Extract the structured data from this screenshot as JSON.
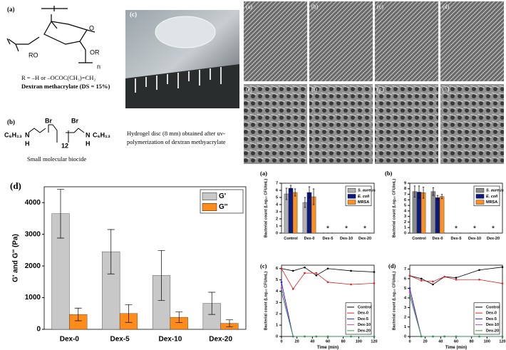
{
  "structure": {
    "label": "(a)",
    "ro": "RO",
    "or": "OR",
    "o": "O",
    "n": "n",
    "r_group": "R = –H or –OCOC(CH₃)=CH₂",
    "name": "Dextran methacrylate (DS = 15%)"
  },
  "biocide": {
    "label": "(b)",
    "c6h13_left": "C₆H₁₃",
    "c6h13_right": "C₆H₁₃",
    "n_left": "N",
    "n_right": "N",
    "h_left": "H",
    "h_right": "H",
    "br_left": "Br",
    "br_right": "Br",
    "repeat": "12",
    "name": "Small molecular biocide"
  },
  "photo": {
    "label": "(c)",
    "caption_1": "Hydrogel disc  (8 mm) obtained after uv-",
    "caption_2": "polymerization of dextran methyacrylate"
  },
  "sem": {
    "labels": [
      "(a)",
      "(b)",
      "(c)",
      "(d)",
      "(e)",
      "(f)",
      "(g)",
      "(h)"
    ]
  },
  "chart_data": [
    {
      "type": "bar",
      "title": "(d)",
      "categories": [
        "Dex-0",
        "Dex-5",
        "Dex-10",
        "Dex-20"
      ],
      "ylabel": "G' and G'' (Pa)",
      "series": [
        {
          "name": "G'",
          "color": "#c8c8c8",
          "values": [
            3650,
            2450,
            1700,
            820
          ],
          "errors": [
            770,
            700,
            790,
            350
          ]
        },
        {
          "name": "G''",
          "color": "#ff8c1a",
          "values": [
            470,
            500,
            380,
            190
          ],
          "errors": [
            200,
            280,
            170,
            110
          ]
        }
      ],
      "ylim": [
        0,
        4500
      ],
      "yticks": [
        0,
        1000,
        2000,
        3000,
        4000
      ],
      "legend": "upper right"
    },
    {
      "type": "bar",
      "title": "(a)",
      "categories": [
        "Control",
        "Dex-0",
        "Dex-5",
        "Dex-10",
        "Dex-20"
      ],
      "ylabel": "Bacterial count (Log₁₀ CFU/mL)",
      "series": [
        {
          "name": "S. aureus",
          "color": "#b0b0b0",
          "values": [
            5.5,
            4.3,
            0,
            0,
            0
          ],
          "errors": [
            0.8,
            0.7,
            0,
            0,
            0
          ]
        },
        {
          "name": "E. coli",
          "color": "#0a1a80",
          "values": [
            6.3,
            5.7,
            0,
            0,
            0
          ],
          "errors": [
            0.4,
            0.8,
            0,
            0,
            0
          ]
        },
        {
          "name": "MRSA",
          "color": "#ff9020",
          "values": [
            5.7,
            5.1,
            0,
            0,
            0
          ],
          "errors": [
            0.5,
            1.1,
            0,
            0,
            0
          ]
        }
      ],
      "annotations": [
        {
          "x": "Dex-5",
          "text": "*"
        },
        {
          "x": "Dex-10",
          "text": "*"
        },
        {
          "x": "Dex-20",
          "text": "*"
        }
      ],
      "ylim": [
        0,
        7
      ],
      "yticks": [
        0,
        1,
        2,
        3,
        4,
        5,
        6,
        7
      ],
      "legend": "upper right"
    },
    {
      "type": "bar",
      "title": "(b)",
      "categories": [
        "Control",
        "Dex-0",
        "Dex-5",
        "Dex-10",
        "Dex-20"
      ],
      "ylabel": "Bacterial count (Log₁₀ CFU/mL)",
      "series": [
        {
          "name": "S. aureus",
          "color": "#8c8c8c",
          "values": [
            7.5,
            7.5,
            0,
            0,
            0
          ],
          "errors": [
            1.0,
            0.7,
            0,
            0,
            0
          ]
        },
        {
          "name": "E. coli",
          "color": "#0a1a80",
          "values": [
            7.4,
            6.4,
            0,
            0,
            0
          ],
          "errors": [
            1.1,
            0.4,
            0,
            0,
            0
          ]
        },
        {
          "name": "MRSA",
          "color": "#ff9020",
          "values": [
            7.3,
            6.6,
            0,
            0,
            0
          ],
          "errors": [
            1.0,
            0.4,
            0,
            0,
            0
          ]
        }
      ],
      "annotations": [
        {
          "x": "Dex-5",
          "text": "*"
        },
        {
          "x": "Dex-10",
          "text": "*"
        },
        {
          "x": "Dex-20",
          "text": "*"
        }
      ],
      "ylim": [
        0,
        9
      ],
      "yticks": [
        0,
        1,
        2,
        3,
        4,
        5,
        6,
        7,
        8,
        9
      ],
      "legend": "upper right"
    },
    {
      "type": "line",
      "title": "(c)",
      "x": [
        0,
        15,
        30,
        45,
        60,
        90,
        120
      ],
      "xlabel": "Time (min)",
      "ylabel": "Bacterial count (Log₁₀ CFU/mL)",
      "series": [
        {
          "name": "Control",
          "color": "#000000",
          "values": [
            6.0,
            5.8,
            6.1,
            5.4,
            6.0,
            5.8,
            5.7
          ]
        },
        {
          "name": "Dex-0",
          "color": "#e02020",
          "values": [
            6.0,
            4.2,
            5.6,
            5.6,
            4.8,
            4.6,
            4.7
          ]
        },
        {
          "name": "Dex-5",
          "color": "#2020c0",
          "values": [
            4.8,
            0,
            0,
            0,
            0,
            0,
            0
          ]
        },
        {
          "name": "Dex-10",
          "color": "#c040c0",
          "values": [
            4.3,
            0,
            0,
            0,
            0,
            0,
            0
          ]
        },
        {
          "name": "Dex-20",
          "color": "#20a040",
          "values": [
            3.9,
            0,
            0,
            0,
            0,
            0,
            0
          ]
        }
      ],
      "xlim": [
        0,
        120
      ],
      "xticks": [
        0,
        20,
        40,
        60,
        80,
        100,
        120
      ],
      "ylim": [
        0,
        6.3
      ],
      "yticks": [
        0,
        1,
        2,
        3,
        4,
        5,
        6
      ],
      "legend": "lower right"
    },
    {
      "type": "line",
      "title": "(d)",
      "x": [
        0,
        15,
        30,
        45,
        60,
        90,
        120
      ],
      "xlabel": "Time (min)",
      "ylabel": "Bacterial count (Log₁₀ CFU/mL)",
      "series": [
        {
          "name": "Control",
          "color": "#000000",
          "values": [
            6.3,
            6.0,
            5.4,
            6.2,
            6.1,
            6.9,
            7.2
          ]
        },
        {
          "name": "Dex-0",
          "color": "#e02020",
          "values": [
            6.3,
            5.8,
            5.7,
            6.2,
            5.9,
            5.9,
            5.5
          ]
        },
        {
          "name": "Dex-5",
          "color": "#2020c0",
          "values": [
            5.0,
            0,
            0,
            0,
            0,
            0,
            0
          ]
        },
        {
          "name": "Dex-10",
          "color": "#c040c0",
          "values": [
            4.6,
            0,
            0,
            0,
            0,
            0,
            0
          ]
        },
        {
          "name": "Dex-20",
          "color": "#20a040",
          "values": [
            4.2,
            0,
            0,
            0,
            0,
            0,
            0
          ]
        }
      ],
      "xlim": [
        0,
        120
      ],
      "xticks": [
        0,
        20,
        40,
        60,
        80,
        100,
        120
      ],
      "ylim": [
        0,
        7.4
      ],
      "yticks": [
        0,
        1,
        2,
        3,
        4,
        5,
        6,
        7
      ],
      "legend": "lower right"
    }
  ]
}
